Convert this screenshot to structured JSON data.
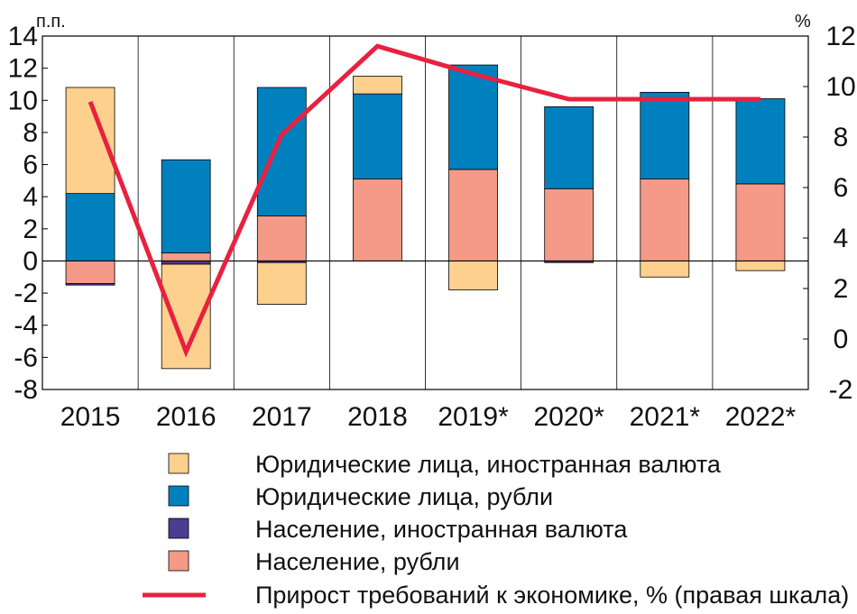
{
  "chart_data": {
    "type": "bar",
    "stacked": true,
    "categories": [
      "2015",
      "2016",
      "2017",
      "2018",
      "2019*",
      "2020*",
      "2021*",
      "2022*"
    ],
    "left_axis": {
      "unit": "п.п.",
      "ylim": [
        -8,
        14
      ],
      "ticks": [
        14,
        12,
        10,
        8,
        6,
        4,
        2,
        0,
        -2,
        -4,
        -6,
        -8
      ]
    },
    "right_axis": {
      "unit": "%",
      "ylim": [
        -2,
        12
      ],
      "ticks": [
        12,
        10,
        8,
        6,
        4,
        2,
        0,
        -2
      ]
    },
    "series": [
      {
        "name": "Юридические лица, иностранная валюта",
        "color": "#fdd08e",
        "values": [
          6.6,
          -6.5,
          -2.6,
          1.1,
          -1.8,
          0.0,
          -1.0,
          -0.6
        ]
      },
      {
        "name": "Юридические лица, рубли",
        "color": "#0081be",
        "values": [
          4.2,
          5.8,
          8.0,
          5.3,
          6.5,
          5.1,
          5.4,
          5.3
        ]
      },
      {
        "name": "Население, иностранная валюта",
        "color": "#4b3d8f",
        "values": [
          -0.1,
          -0.2,
          -0.1,
          0.0,
          0.0,
          -0.1,
          0.0,
          0.0
        ]
      },
      {
        "name": "Население, рубли",
        "color": "#f59a88",
        "values": [
          -1.4,
          0.5,
          2.8,
          5.1,
          5.7,
          4.5,
          5.1,
          4.8
        ]
      }
    ],
    "line": {
      "name": "Прирост требований к экономике, % (правая шкала)",
      "color": "#e8213f",
      "axis": "right",
      "values": [
        9.4,
        -0.5,
        8.1,
        11.6,
        10.5,
        9.5,
        9.5,
        9.5
      ]
    },
    "grid": "vertical",
    "legend": "bottom"
  }
}
